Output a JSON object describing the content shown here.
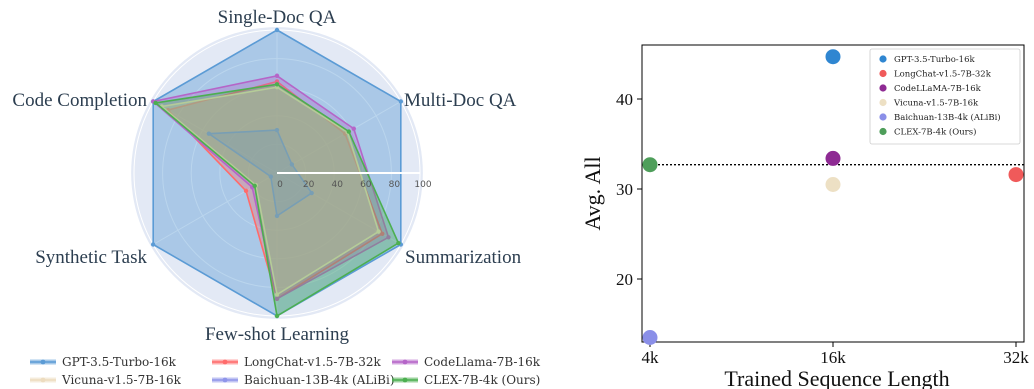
{
  "chart_data": [
    {
      "type": "radar",
      "axes": [
        "Single-Doc QA",
        "Multi-Doc QA",
        "Summarization",
        "Few-shot Learning",
        "Synthetic Task",
        "Code Completion"
      ],
      "ring_labels": [
        "0",
        "20",
        "40",
        "60",
        "80",
        "100"
      ],
      "rmax": 100,
      "grid": true,
      "legend_position": "bottom",
      "series": [
        {
          "name": "GPT-3.5-Turbo-16k",
          "values": [
            100,
            100,
            100,
            100,
            100,
            100
          ],
          "color": "#5b9bd5"
        },
        {
          "name": "LongChat-v1.5-7B-32k",
          "values": [
            64,
            55,
            85,
            88,
            25,
            88
          ],
          "color": "#ff6b6b"
        },
        {
          "name": "CodeLlama-7B-16k",
          "values": [
            68,
            62,
            90,
            88,
            20,
            100
          ],
          "color": "#b565c8"
        },
        {
          "name": "Vicuna-v1.5-7B-16k",
          "values": [
            60,
            57,
            82,
            85,
            17,
            93
          ],
          "color": "#eddcbf"
        },
        {
          "name": "Baichuan-13B-4k (ALiBi)",
          "values": [
            30,
            12,
            28,
            30,
            5,
            55
          ],
          "color": "#8f95ea"
        },
        {
          "name": "CLEX-7B-4k (Ours)",
          "values": [
            62,
            58,
            98,
            100,
            18,
            98
          ],
          "color": "#4caf50"
        }
      ]
    },
    {
      "type": "scatter",
      "xlabel": "Trained Sequence Length",
      "ylabel": "Avg. All",
      "x_ticks": [
        "4k",
        "16k",
        "32k"
      ],
      "y_ticks": [
        20,
        30,
        40
      ],
      "ylim": [
        13,
        46
      ],
      "reference_line_y": 32.7,
      "legend_position": "top-right",
      "series": [
        {
          "name": "GPT-3.5-Turbo-16k",
          "x": "16k",
          "y": 44.7,
          "color": "#2f86d1"
        },
        {
          "name": "LongChat-v1.5-7B-32k",
          "x": "32k",
          "y": 31.6,
          "color": "#f05a5a"
        },
        {
          "name": "CodeLLaMA-7B-16k",
          "x": "16k",
          "y": 33.4,
          "color": "#8e2a93"
        },
        {
          "name": "Vicuna-v1.5-7B-16k",
          "x": "16k",
          "y": 30.5,
          "color": "#ede0c4"
        },
        {
          "name": "Baichuan-13B-4k (ALiBi)",
          "x": "4k",
          "y": 13.5,
          "color": "#8a8fe8"
        },
        {
          "name": "CLEX-7B-4k (Ours)",
          "x": "4k",
          "y": 32.7,
          "color": "#4e9e5a"
        }
      ]
    }
  ]
}
